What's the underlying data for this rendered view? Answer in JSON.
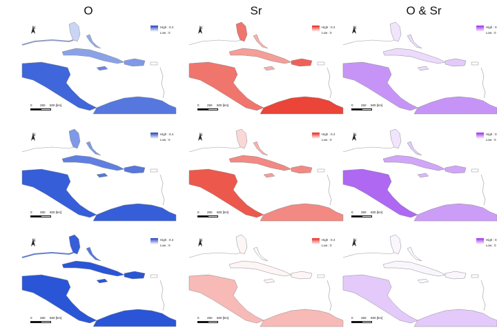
{
  "columns": [
    {
      "title": "O",
      "colors": {
        "high": "#1f3fbf",
        "low": "#ffffff",
        "fill": "#2a55d6",
        "pale": "#c9d8f5"
      }
    },
    {
      "title": "Sr",
      "colors": {
        "high": "#e8261c",
        "low": "#ffffff",
        "fill": "#ea3a2e",
        "pale": "#f6c6c1"
      }
    },
    {
      "title": "O & Sr",
      "colors": {
        "high": "#9b2bf0",
        "low": "#ffffff",
        "fill": "#a04df0",
        "pale": "#e5cff9"
      }
    }
  ],
  "legend": {
    "high": "High : 0.4",
    "low": "Low : 0"
  },
  "north_label": "N",
  "scale": {
    "labels": [
      "0",
      "250",
      "500 [km]"
    ]
  }
}
